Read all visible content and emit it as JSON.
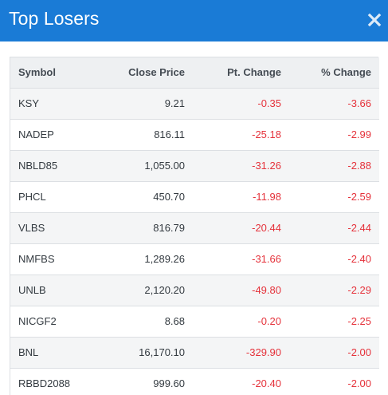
{
  "header": {
    "title": "Top Losers"
  },
  "colors": {
    "header_bg": "#1a7bd6",
    "negative": "#e5323b",
    "row_alt": "#f4f5f6"
  },
  "table": {
    "columns": [
      "Symbol",
      "Close Price",
      "Pt. Change",
      "% Change"
    ],
    "rows": [
      [
        "KSY",
        "9.21",
        "-0.35",
        "-3.66"
      ],
      [
        "NADEP",
        "816.11",
        "-25.18",
        "-2.99"
      ],
      [
        "NBLD85",
        "1,055.00",
        "-31.26",
        "-2.88"
      ],
      [
        "PHCL",
        "450.70",
        "-11.98",
        "-2.59"
      ],
      [
        "VLBS",
        "816.79",
        "-20.44",
        "-2.44"
      ],
      [
        "NMFBS",
        "1,289.26",
        "-31.66",
        "-2.40"
      ],
      [
        "UNLB",
        "2,120.20",
        "-49.80",
        "-2.29"
      ],
      [
        "NICGF2",
        "8.68",
        "-0.20",
        "-2.25"
      ],
      [
        "BNL",
        "16,170.10",
        "-329.90",
        "-2.00"
      ],
      [
        "RBBD2088",
        "999.60",
        "-20.40",
        "-2.00"
      ]
    ]
  },
  "icons": {
    "close": "close-icon"
  }
}
